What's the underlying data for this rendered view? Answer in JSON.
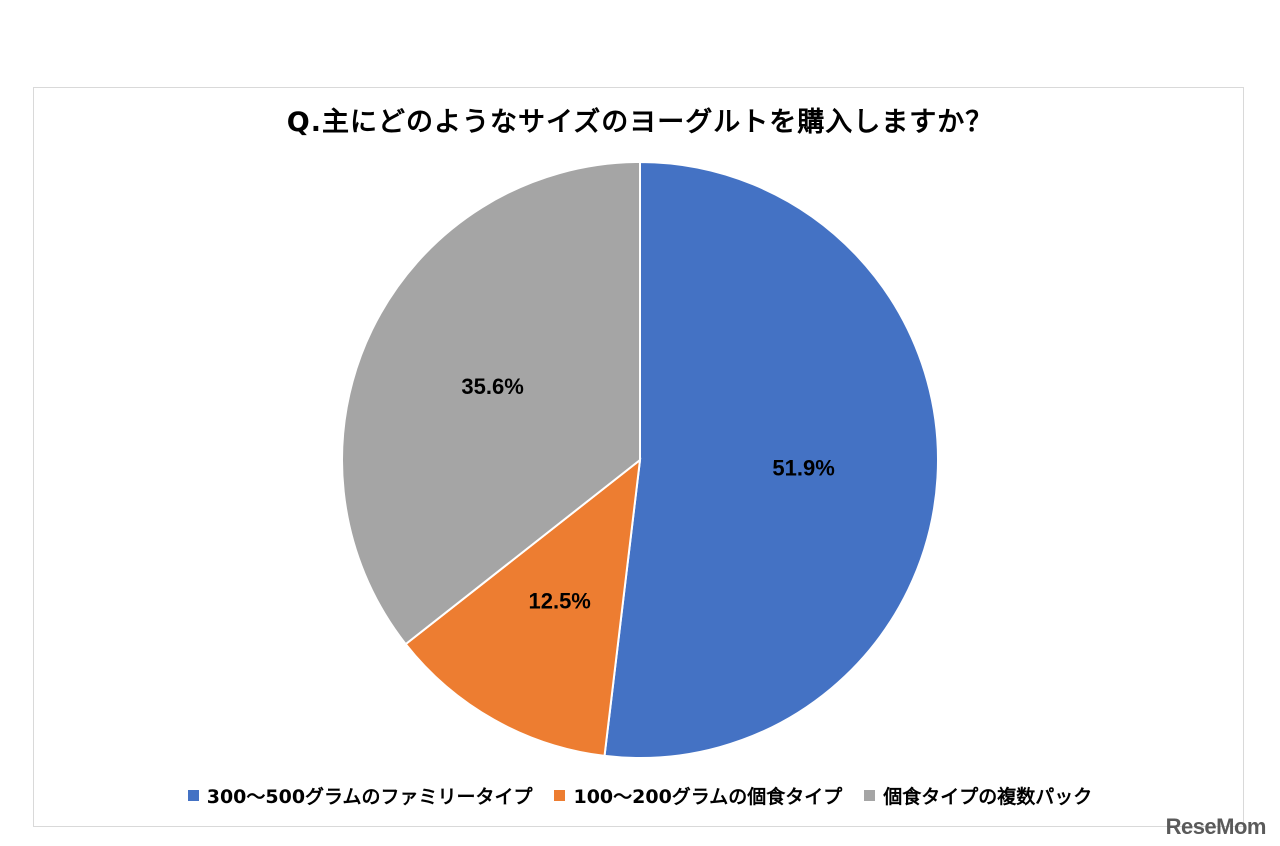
{
  "chart_data": {
    "type": "pie",
    "title": "Q.主にどのようなサイズのヨーグルトを購入しますか？",
    "slices": [
      {
        "name": "300〜500グラムのファミリータイプ",
        "value": 51.9,
        "label": "51.9%",
        "color": "#4472C4"
      },
      {
        "name": "100〜200グラムの個食タイプ",
        "value": 12.5,
        "label": "12.5%",
        "color": "#ED7D31"
      },
      {
        "name": "個食タイプの複数パック",
        "value": 35.6,
        "label": "35.6%",
        "color": "#A5A5A5"
      }
    ],
    "start_angle": "12 o'clock",
    "direction": "clockwise",
    "legend_position": "bottom"
  },
  "watermark": "ReseMom"
}
